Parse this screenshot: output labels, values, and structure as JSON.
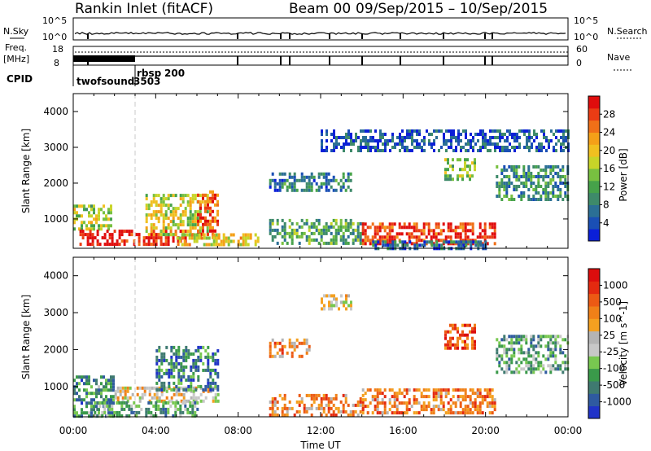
{
  "header": {
    "title": "Rankin Inlet (fitACF)",
    "beam": "Beam 00",
    "dates": "09/Sep/2015 – 10/Sep/2015"
  },
  "top_panels": {
    "nsky_label": "N.Sky",
    "nsky_ticks": [
      "10^5",
      "10^0"
    ],
    "nsearch_label": "N.Search",
    "freq_label_1": "Freq.",
    "freq_label_2": "[MHz]",
    "freq_ticks": [
      "18",
      "8"
    ],
    "nave_ticks": [
      "60",
      "0"
    ],
    "nave_label": "Nave",
    "cpid_label": "CPID",
    "cpid_entries": [
      {
        "name": "twofsound",
        "id": "3503",
        "start_hour": 0
      },
      {
        "name": "rbsp",
        "id": "200",
        "start_hour": 3
      }
    ]
  },
  "chart_data": [
    {
      "type": "heatmap",
      "name": "power",
      "xlabel": "Time UT",
      "ylabel": "Slant Range [km]",
      "xlim_hours": [
        0,
        24
      ],
      "x_tick_labels": [
        "00:00",
        "04:00",
        "08:00",
        "12:00",
        "16:00",
        "20:00",
        "00:00"
      ],
      "ylim": [
        180,
        4500
      ],
      "y_ticks": [
        1000,
        2000,
        3000,
        4000
      ],
      "colorbar": {
        "label": "Power [dB]",
        "ticks": [
          "4",
          "8",
          "12",
          "16",
          "20",
          "24",
          "28"
        ],
        "colors": [
          "#0b1fd8",
          "#1a4fb5",
          "#2b6f95",
          "#3e8a6a",
          "#46a24a",
          "#78c040",
          "#c8d428",
          "#f0c020",
          "#f4a018",
          "#f07018",
          "#ea3c14",
          "#e00d0d"
        ]
      },
      "features": [
        {
          "t0": 0.0,
          "t1": 1.8,
          "r0": 700,
          "r1": 1400,
          "level": 0.5
        },
        {
          "t0": 0.3,
          "t1": 5.5,
          "r0": 250,
          "r1": 700,
          "level": 0.95
        },
        {
          "t0": 3.5,
          "t1": 6.5,
          "r0": 600,
          "r1": 1700,
          "level": 0.55
        },
        {
          "t0": 6.0,
          "t1": 7.0,
          "r0": 500,
          "r1": 1800,
          "level": 0.85
        },
        {
          "t0": 5.0,
          "t1": 9.0,
          "r0": 250,
          "r1": 600,
          "level": 0.6
        },
        {
          "t0": 9.5,
          "t1": 14.0,
          "r0": 300,
          "r1": 1000,
          "level": 0.35
        },
        {
          "t0": 14.0,
          "t1": 20.5,
          "r0": 350,
          "r1": 900,
          "level": 0.9
        },
        {
          "t0": 14.5,
          "t1": 20.0,
          "r0": 180,
          "r1": 400,
          "level": 0.2
        },
        {
          "t0": 9.5,
          "t1": 13.5,
          "r0": 1800,
          "r1": 2300,
          "level": 0.25
        },
        {
          "t0": 18.0,
          "t1": 19.5,
          "r0": 2100,
          "r1": 2700,
          "level": 0.45
        },
        {
          "t0": 20.5,
          "t1": 24.0,
          "r0": 1500,
          "r1": 2500,
          "level": 0.3
        },
        {
          "t0": 12.0,
          "t1": 24.0,
          "r0": 2900,
          "r1": 3500,
          "level": 0.15
        }
      ]
    },
    {
      "type": "heatmap",
      "name": "velocity",
      "xlabel": "Time UT",
      "ylabel": "Slant Range [km]",
      "xlim_hours": [
        0,
        24
      ],
      "x_tick_labels": [
        "00:00",
        "04:00",
        "08:00",
        "12:00",
        "16:00",
        "20:00",
        "00:00"
      ],
      "ylim": [
        180,
        4500
      ],
      "y_ticks": [
        1000,
        2000,
        3000,
        4000
      ],
      "colorbar": {
        "label": "Velocity [m s^-1]",
        "ticks": [
          "1000",
          "500",
          "100",
          "25",
          "-25",
          "-100",
          "-500",
          "-1000"
        ],
        "colors": [
          "#2033c8",
          "#2f5aa0",
          "#3f7a70",
          "#3a9a4a",
          "#78c850",
          "#c8c8c8",
          "#b4b4b4",
          "#f4a020",
          "#f08018",
          "#ec5a14",
          "#e42a10",
          "#dc0d0d"
        ]
      },
      "features": [
        {
          "t0": 0.0,
          "t1": 2.0,
          "r0": 200,
          "r1": 1300,
          "level": 0.25
        },
        {
          "t0": 2.0,
          "t1": 7.0,
          "r0": 600,
          "r1": 1000,
          "level": 0.55
        },
        {
          "t0": 4.0,
          "t1": 7.0,
          "r0": 900,
          "r1": 2100,
          "level": 0.2
        },
        {
          "t0": 1.0,
          "t1": 6.0,
          "r0": 200,
          "r1": 600,
          "level": 0.3
        },
        {
          "t0": 9.5,
          "t1": 14.0,
          "r0": 200,
          "r1": 800,
          "level": 0.72
        },
        {
          "t0": 14.0,
          "t1": 20.5,
          "r0": 300,
          "r1": 950,
          "level": 0.72
        },
        {
          "t0": 18.0,
          "t1": 19.5,
          "r0": 2000,
          "r1": 2700,
          "level": 0.8
        },
        {
          "t0": 12.0,
          "t1": 13.5,
          "r0": 3100,
          "r1": 3500,
          "level": 0.5
        },
        {
          "t0": 20.5,
          "t1": 24.0,
          "r0": 1400,
          "r1": 2400,
          "level": 0.3
        },
        {
          "t0": 9.5,
          "t1": 11.5,
          "r0": 1800,
          "r1": 2300,
          "level": 0.7
        }
      ]
    }
  ]
}
